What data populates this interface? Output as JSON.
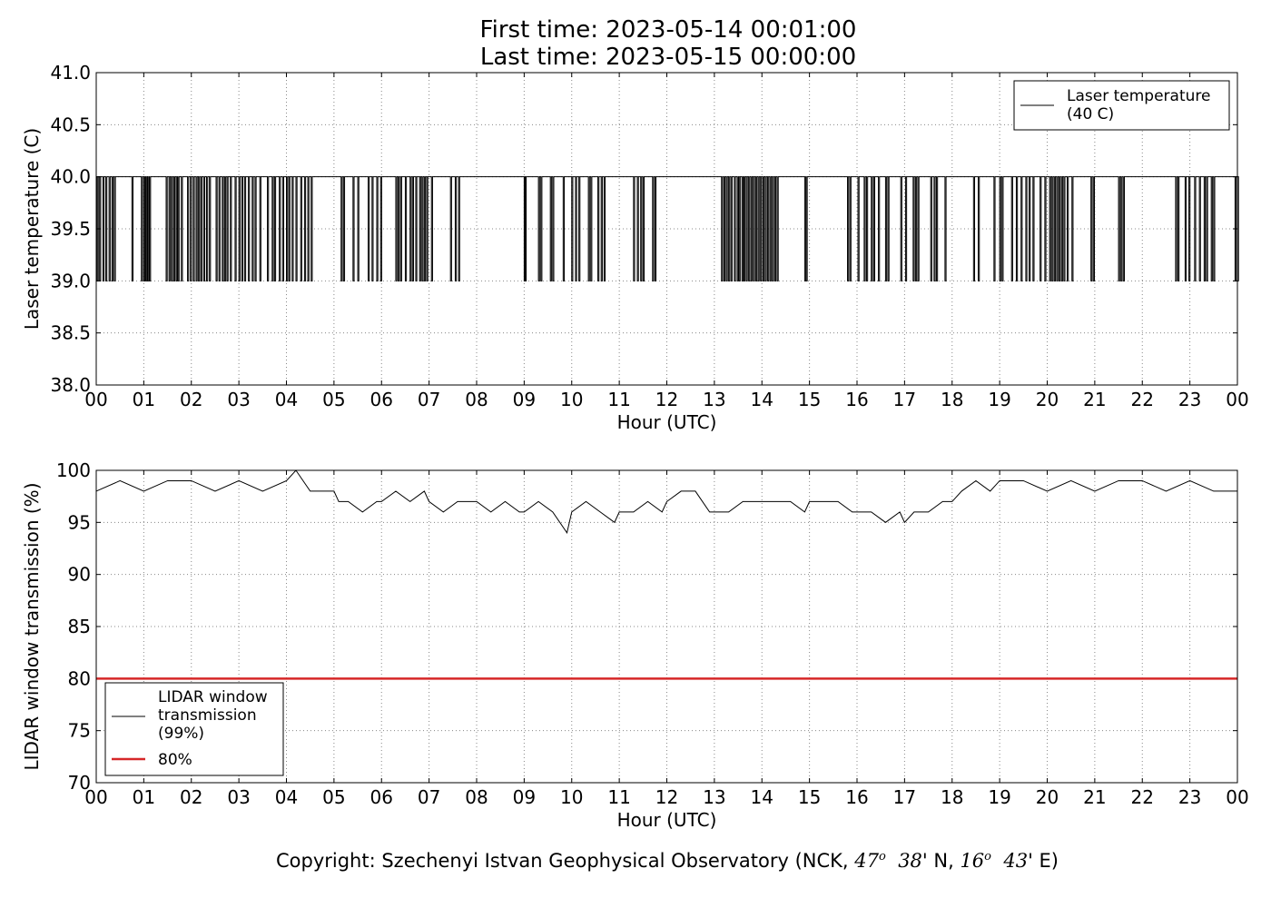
{
  "header": {
    "title_line1": "First time: 2023-05-14 00:01:00",
    "title_line2": "Last time: 2023-05-15 00:00:00"
  },
  "footer": {
    "prefix": "Copyright: Szechenyi Istvan Geophysical Observatory (NCK, ",
    "lat_deg": "47",
    "lat_min": "38",
    "lat_suffix": "' N, ",
    "lon_deg": "16",
    "lon_min": "43",
    "lon_suffix": "' E)",
    "degree_mark": "o"
  },
  "colors": {
    "line": "#000000",
    "threshold": "#d62728",
    "grid": "#888888"
  },
  "chart_data": [
    {
      "type": "line",
      "xlabel": "Hour (UTC)",
      "ylabel": "Laser temperature (C)",
      "xlim": [
        0,
        24
      ],
      "ylim": [
        38.0,
        41.0
      ],
      "grid": true,
      "legend_position": "top-right",
      "xticks": [
        "00",
        "01",
        "02",
        "03",
        "04",
        "05",
        "06",
        "07",
        "08",
        "09",
        "10",
        "11",
        "12",
        "13",
        "14",
        "15",
        "16",
        "17",
        "18",
        "19",
        "20",
        "21",
        "22",
        "23",
        "00"
      ],
      "yticks": [
        "38.0",
        "38.5",
        "39.0",
        "39.5",
        "40.0",
        "40.5",
        "41.0"
      ],
      "series": [
        {
          "name": "Laser temperature\n(40 C)",
          "baseline": 40.0,
          "dip_value": 39.0,
          "dips_hours": [
            0.02,
            0.07,
            0.14,
            0.2,
            0.27,
            0.33,
            0.38,
            0.75,
            0.95,
            1.0,
            1.04,
            1.08,
            1.12,
            1.47,
            1.53,
            1.58,
            1.63,
            1.68,
            1.72,
            1.79,
            1.92,
            1.98,
            2.04,
            2.1,
            2.15,
            2.2,
            2.26,
            2.32,
            2.38,
            2.52,
            2.58,
            2.65,
            2.7,
            2.75,
            2.82,
            2.92,
            3.0,
            3.06,
            3.12,
            3.2,
            3.28,
            3.34,
            3.44,
            3.6,
            3.7,
            3.75,
            3.85,
            3.92,
            4.0,
            4.05,
            4.12,
            4.2,
            4.3,
            4.38,
            4.45,
            4.52,
            5.15,
            5.2,
            5.4,
            5.5,
            5.72,
            5.8,
            5.9,
            5.98,
            6.3,
            6.35,
            6.4,
            6.5,
            6.6,
            6.65,
            6.72,
            6.8,
            6.85,
            6.9,
            6.95,
            7.05,
            7.45,
            7.55,
            7.62,
            9.0,
            9.02,
            9.3,
            9.35,
            9.55,
            9.6,
            9.82,
            10.0,
            10.08,
            10.15,
            10.35,
            10.4,
            10.55,
            10.62,
            10.68,
            11.3,
            11.38,
            11.45,
            11.5,
            11.7,
            11.75,
            13.15,
            13.2,
            13.25,
            13.3,
            13.35,
            13.42,
            13.48,
            13.52,
            13.58,
            13.62,
            13.67,
            13.72,
            13.77,
            13.82,
            13.87,
            13.92,
            13.97,
            14.02,
            14.07,
            14.12,
            14.17,
            14.22,
            14.27,
            14.32,
            14.9,
            14.93,
            15.8,
            15.85,
            16.02,
            16.15,
            16.2,
            16.3,
            16.35,
            16.45,
            16.6,
            16.65,
            16.92,
            17.02,
            17.18,
            17.23,
            17.28,
            17.55,
            17.62,
            17.67,
            17.85,
            18.45,
            18.55,
            18.88,
            19.0,
            19.05,
            19.25,
            19.35,
            19.45,
            19.55,
            19.62,
            19.7,
            19.85,
            19.95,
            20.05,
            20.1,
            20.15,
            20.2,
            20.25,
            20.3,
            20.35,
            20.42,
            20.52,
            20.92,
            20.97,
            21.5,
            21.55,
            21.6,
            22.7,
            22.75,
            22.9,
            22.98,
            23.1,
            23.2,
            23.3,
            23.35,
            23.45,
            23.5,
            23.95,
            24.0
          ]
        }
      ]
    },
    {
      "type": "line",
      "xlabel": "Hour (UTC)",
      "ylabel": "LIDAR window transmission (%)",
      "xlim": [
        0,
        24
      ],
      "ylim": [
        70,
        100
      ],
      "grid": true,
      "legend_position": "bottom-left",
      "xticks": [
        "00",
        "01",
        "02",
        "03",
        "04",
        "05",
        "06",
        "07",
        "08",
        "09",
        "10",
        "11",
        "12",
        "13",
        "14",
        "15",
        "16",
        "17",
        "18",
        "19",
        "20",
        "21",
        "22",
        "23",
        "00"
      ],
      "yticks": [
        "70",
        "75",
        "80",
        "85",
        "90",
        "95",
        "100"
      ],
      "series": [
        {
          "name": "LIDAR window\ntransmission\n(99%)",
          "x": [
            0,
            0.5,
            1,
            1.5,
            2,
            2.5,
            3,
            3.5,
            4,
            4.2,
            4.5,
            5,
            5.1,
            5.3,
            5.6,
            5.9,
            6,
            6.3,
            6.6,
            6.9,
            7,
            7.3,
            7.6,
            7.9,
            8,
            8.3,
            8.6,
            8.9,
            9,
            9.3,
            9.6,
            9.9,
            10,
            10.3,
            10.6,
            10.9,
            11,
            11.3,
            11.6,
            11.9,
            12,
            12.3,
            12.6,
            12.9,
            13,
            13.3,
            13.6,
            13.9,
            14,
            14.3,
            14.6,
            14.9,
            15,
            15.3,
            15.6,
            15.9,
            16,
            16.3,
            16.6,
            16.9,
            17,
            17.2,
            17.5,
            17.8,
            18,
            18.2,
            18.5,
            18.8,
            19,
            19.5,
            20,
            20.5,
            21,
            21.5,
            22,
            22.5,
            23,
            23.5,
            24
          ],
          "values": [
            98,
            99,
            98,
            99,
            99,
            98,
            99,
            98,
            99,
            100,
            98,
            98,
            97,
            97,
            96,
            97,
            97,
            98,
            97,
            98,
            97,
            96,
            97,
            97,
            97,
            96,
            97,
            96,
            96,
            97,
            96,
            94,
            96,
            97,
            96,
            95,
            96,
            96,
            97,
            96,
            97,
            98,
            98,
            96,
            96,
            96,
            97,
            97,
            97,
            97,
            97,
            96,
            97,
            97,
            97,
            96,
            96,
            96,
            95,
            96,
            95,
            96,
            96,
            97,
            97,
            98,
            99,
            98,
            99,
            99,
            98,
            99,
            98,
            99,
            99,
            98,
            99,
            98,
            98
          ]
        },
        {
          "name": "80%",
          "x": [
            0,
            24
          ],
          "values": [
            80,
            80
          ]
        }
      ]
    }
  ]
}
